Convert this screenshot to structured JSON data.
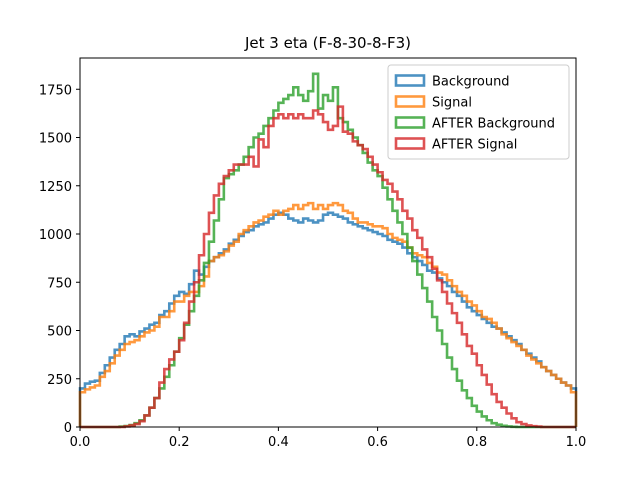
{
  "chart_data": {
    "type": "histogram-step",
    "title": "Jet 3 eta (F-8-30-8-F3)",
    "xlabel": "",
    "ylabel": "",
    "xlim": [
      0,
      1
    ],
    "ylim": [
      0,
      1912
    ],
    "xticks": [
      0.0,
      0.2,
      0.4,
      0.6,
      0.8,
      1.0
    ],
    "xtick_labels": [
      "0.0",
      "0.2",
      "0.4",
      "0.6",
      "0.8",
      "1.0"
    ],
    "yticks": [
      0,
      250,
      500,
      750,
      1000,
      1250,
      1500,
      1750
    ],
    "ytick_labels": [
      "0",
      "250",
      "500",
      "750",
      "1000",
      "1250",
      "1500",
      "1750"
    ],
    "legend_position": "top-right",
    "bin_count": 100,
    "bin_range": [
      0,
      1
    ],
    "series": [
      {
        "name": "Background",
        "color": "#1f77b4",
        "values": [
          200,
          225,
          235,
          240,
          280,
          320,
          360,
          400,
          430,
          470,
          480,
          470,
          495,
          510,
          530,
          540,
          580,
          600,
          640,
          680,
          700,
          690,
          740,
          810,
          790,
          830,
          860,
          880,
          900,
          920,
          950,
          970,
          990,
          1010,
          1020,
          1040,
          1050,
          1060,
          1080,
          1100,
          1110,
          1100,
          1080,
          1070,
          1060,
          1080,
          1070,
          1060,
          1070,
          1100,
          1110,
          1100,
          1090,
          1080,
          1060,
          1050,
          1040,
          1030,
          1020,
          1010,
          1000,
          990,
          970,
          960,
          950,
          930,
          900,
          880,
          860,
          840,
          810,
          800,
          770,
          750,
          730,
          700,
          680,
          650,
          620,
          600,
          580,
          560,
          540,
          520,
          510,
          490,
          470,
          450,
          430,
          400,
          380,
          360,
          340,
          310,
          290,
          270,
          250,
          230,
          215,
          200
        ]
      },
      {
        "name": "Signal",
        "color": "#ff7f0e",
        "values": [
          180,
          195,
          205,
          215,
          260,
          290,
          330,
          370,
          400,
          430,
          440,
          450,
          470,
          490,
          500,
          520,
          570,
          570,
          600,
          650,
          650,
          680,
          700,
          700,
          730,
          780,
          860,
          880,
          890,
          910,
          940,
          960,
          1000,
          1020,
          1040,
          1060,
          1070,
          1090,
          1100,
          1120,
          1100,
          1120,
          1130,
          1150,
          1130,
          1150,
          1160,
          1130,
          1150,
          1130,
          1150,
          1160,
          1150,
          1120,
          1110,
          1080,
          1060,
          1060,
          1050,
          1040,
          1040,
          1030,
          1000,
          980,
          970,
          960,
          930,
          900,
          890,
          880,
          850,
          830,
          800,
          790,
          760,
          730,
          700,
          680,
          650,
          630,
          600,
          570,
          560,
          540,
          510,
          480,
          460,
          440,
          420,
          400,
          370,
          350,
          330,
          310,
          290,
          270,
          250,
          230,
          215,
          180
        ]
      },
      {
        "name": "AFTER Background",
        "color": "#2ca02c",
        "values": [
          0,
          0,
          0,
          0,
          0,
          0,
          0,
          0,
          2,
          5,
          10,
          20,
          35,
          60,
          100,
          150,
          200,
          260,
          320,
          390,
          460,
          530,
          600,
          680,
          760,
          850,
          960,
          1070,
          1180,
          1290,
          1310,
          1330,
          1360,
          1400,
          1450,
          1500,
          1520,
          1560,
          1600,
          1640,
          1680,
          1700,
          1720,
          1760,
          1720,
          1690,
          1740,
          1830,
          1650,
          1720,
          1690,
          1760,
          1600,
          1580,
          1540,
          1500,
          1460,
          1420,
          1370,
          1330,
          1300,
          1240,
          1180,
          1120,
          1060,
          1000,
          930,
          860,
          790,
          720,
          650,
          570,
          500,
          430,
          360,
          300,
          240,
          190,
          150,
          110,
          80,
          55,
          35,
          20,
          12,
          6,
          3,
          1,
          0,
          0,
          0,
          0,
          0,
          0,
          0,
          0,
          0,
          0,
          0,
          0
        ]
      },
      {
        "name": "AFTER Signal",
        "color": "#d62728",
        "values": [
          0,
          0,
          0,
          0,
          0,
          0,
          0,
          0,
          0,
          3,
          8,
          15,
          30,
          60,
          100,
          150,
          230,
          300,
          350,
          390,
          450,
          540,
          650,
          750,
          890,
          1000,
          1110,
          1200,
          1260,
          1300,
          1330,
          1360,
          1360,
          1360,
          1400,
          1350,
          1490,
          1450,
          1560,
          1600,
          1620,
          1600,
          1620,
          1600,
          1620,
          1600,
          1600,
          1640,
          1620,
          1580,
          1540,
          1560,
          1660,
          1530,
          1520,
          1480,
          1460,
          1440,
          1400,
          1360,
          1320,
          1280,
          1260,
          1220,
          1180,
          1120,
          1080,
          1020,
          980,
          920,
          880,
          820,
          760,
          700,
          640,
          590,
          540,
          480,
          420,
          380,
          320,
          270,
          220,
          170,
          130,
          100,
          70,
          45,
          25,
          15,
          8,
          4,
          2,
          0,
          0,
          0,
          0,
          0,
          0,
          0
        ]
      }
    ]
  }
}
